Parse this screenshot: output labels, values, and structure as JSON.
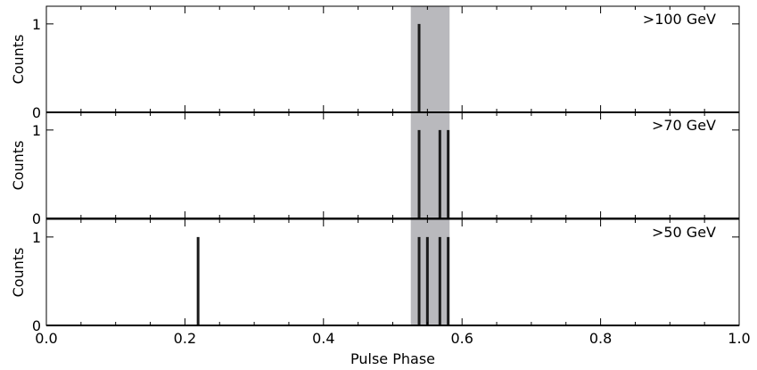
{
  "chart_data": {
    "type": "histogram",
    "xlabel": "Pulse Phase",
    "xlim": [
      0.0,
      1.0
    ],
    "xticks": [
      "0.0",
      "0.2",
      "0.4",
      "0.6",
      "0.8",
      "1.0"
    ],
    "shaded_region": {
      "x0": 0.526,
      "x1": 0.582,
      "color": "#b9b9bd"
    },
    "bar_color": "#1a1a1a",
    "panels": [
      {
        "label": ">100 GeV",
        "ylabel": "Counts",
        "ylim": [
          0,
          1.2
        ],
        "yticks": [
          "0",
          "1"
        ],
        "events": [
          0.538
        ]
      },
      {
        "label": ">70 GeV",
        "ylabel": "Counts",
        "ylim": [
          0,
          1.2
        ],
        "yticks": [
          "0",
          "1"
        ],
        "events": [
          0.538,
          0.568,
          0.58
        ]
      },
      {
        "label": ">50 GeV",
        "ylabel": "Counts",
        "ylim": [
          0,
          1.2
        ],
        "yticks": [
          "0",
          "1"
        ],
        "events": [
          0.219,
          0.538,
          0.55,
          0.568,
          0.58
        ]
      }
    ]
  }
}
